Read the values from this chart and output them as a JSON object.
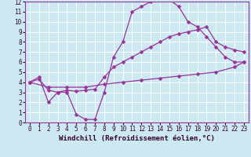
{
  "background_color": "#cce8f0",
  "grid_color": "#ffffff",
  "line_color": "#993399",
  "marker": "D",
  "markersize": 2.5,
  "linewidth": 0.9,
  "xlabel": "Windchill (Refroidissement éolien,°C)",
  "xlabel_fontsize": 6.5,
  "tick_fontsize": 5.5,
  "xlim": [
    -0.5,
    23.5
  ],
  "ylim": [
    0,
    12
  ],
  "xticks": [
    0,
    1,
    2,
    3,
    4,
    5,
    6,
    7,
    8,
    9,
    10,
    11,
    12,
    13,
    14,
    15,
    16,
    17,
    18,
    19,
    20,
    21,
    22,
    23
  ],
  "yticks": [
    0,
    1,
    2,
    3,
    4,
    5,
    6,
    7,
    8,
    9,
    10,
    11,
    12
  ],
  "curve1_x": [
    0,
    1,
    2,
    3,
    4,
    5,
    6,
    7,
    8,
    9,
    10,
    11,
    12,
    13,
    14,
    15,
    16,
    17,
    18,
    19,
    20,
    21,
    22,
    23
  ],
  "curve1_y": [
    4.0,
    4.5,
    2.0,
    3.0,
    3.0,
    0.8,
    0.3,
    0.3,
    3.0,
    6.5,
    8.0,
    11.0,
    11.5,
    12.0,
    12.2,
    12.2,
    11.5,
    10.0,
    9.5,
    8.5,
    7.5,
    6.5,
    6.0,
    6.0
  ],
  "curve2_x": [
    0,
    1,
    2,
    3,
    4,
    5,
    6,
    7,
    8,
    9,
    10,
    11,
    12,
    13,
    14,
    15,
    16,
    17,
    18,
    19,
    20,
    21,
    22,
    23
  ],
  "curve2_y": [
    4.0,
    4.3,
    3.2,
    3.0,
    3.2,
    3.1,
    3.2,
    3.3,
    4.5,
    5.5,
    6.0,
    6.5,
    7.0,
    7.5,
    8.0,
    8.5,
    8.8,
    9.0,
    9.2,
    9.5,
    8.0,
    7.5,
    7.2,
    7.0
  ],
  "curve3_x": [
    0,
    2,
    4,
    6,
    8,
    10,
    12,
    14,
    16,
    18,
    20,
    22,
    23
  ],
  "curve3_y": [
    4.0,
    3.5,
    3.5,
    3.5,
    3.8,
    4.0,
    4.2,
    4.4,
    4.6,
    4.8,
    5.0,
    5.5,
    6.0
  ]
}
